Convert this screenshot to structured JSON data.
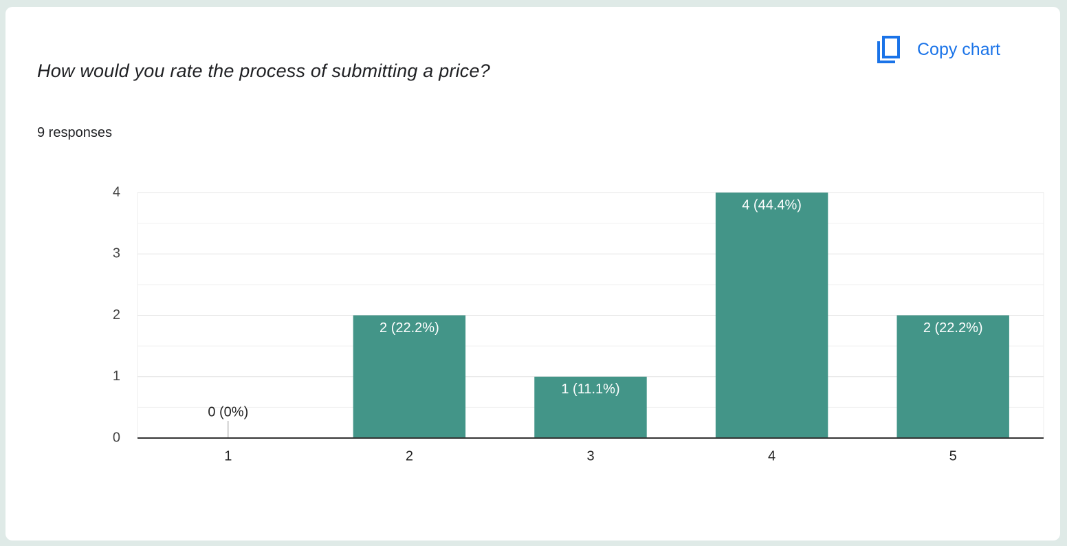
{
  "toolbar": {
    "copy_button": "Copy chart"
  },
  "chart_data": {
    "type": "bar",
    "title": "How would you rate the process of submitting a price?",
    "subtitle": "9 responses",
    "categories": [
      "1",
      "2",
      "3",
      "4",
      "5"
    ],
    "values": [
      0,
      2,
      1,
      4,
      2
    ],
    "value_labels": [
      "0 (0%)",
      "2 (22.2%)",
      "1 (11.1%)",
      "4 (44.4%)",
      "2 (22.2%)"
    ],
    "color": "#439588",
    "ylim": [
      0,
      4
    ],
    "yticks": [
      0,
      1,
      2,
      3,
      4
    ],
    "grid": true
  }
}
